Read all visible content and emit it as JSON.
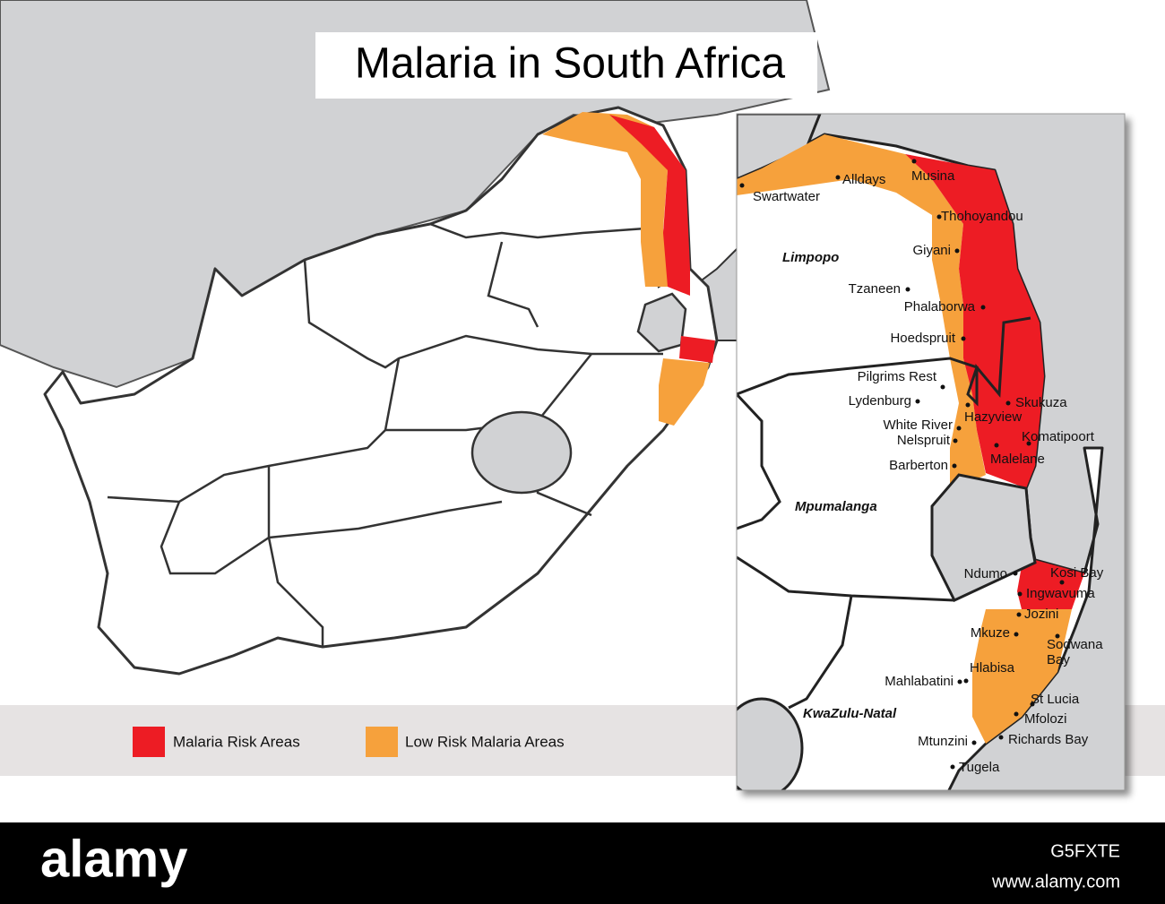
{
  "title": "Malaria in South Africa",
  "legend": [
    {
      "label": "Malaria Risk Areas",
      "color": "#ed1c24"
    },
    {
      "label": "Low Risk Malaria Areas",
      "color": "#f6a13c"
    }
  ],
  "provinces": [
    "Limpopo",
    "Mpumalanga",
    "KwaZulu-Natal"
  ],
  "towns": [
    "Swartwater",
    "Alldays",
    "Musina",
    "Thohoyandou",
    "Giyani",
    "Tzaneen",
    "Phalaborwa",
    "Hoedspruit",
    "Pilgrims Rest",
    "Lydenburg",
    "Skukuza",
    "Hazyview",
    "White River",
    "Nelspruit",
    "Komatipoort",
    "Barberton",
    "Malelane",
    "Ndumo",
    "Kosi Bay",
    "Ingwavuma",
    "Jozini",
    "Mkuze",
    "Sodwana Bay",
    "Hlabisa",
    "Mahlabatini",
    "St Lucia",
    "Mfolozi",
    "Mtunzini",
    "Richards Bay",
    "Tugela"
  ],
  "footer": {
    "logo": "alamy",
    "image_id": "G5FXTE",
    "url": "www.alamy.com"
  }
}
